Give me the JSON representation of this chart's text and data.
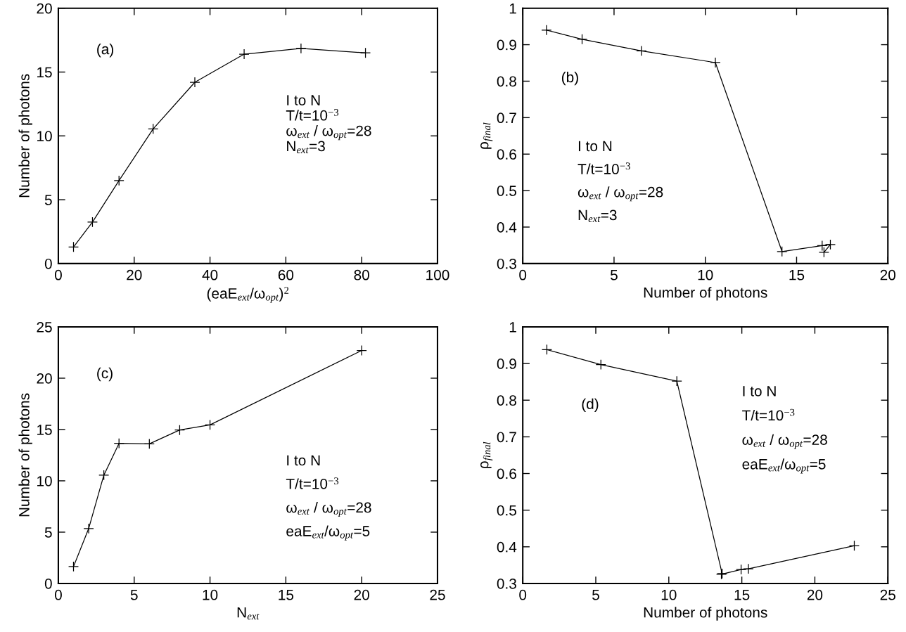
{
  "chart_data": [
    {
      "type": "line",
      "x": [
        4,
        9,
        16,
        25,
        36,
        49,
        64,
        81
      ],
      "values": [
        1.3,
        3.25,
        6.5,
        10.55,
        14.2,
        16.4,
        16.85,
        16.5
      ],
      "color": "#000000",
      "marker": "cross",
      "line_style": "solid",
      "xlim": [
        0,
        100
      ],
      "xticks": [
        0,
        20,
        40,
        60,
        80,
        100
      ],
      "ylim": [
        0,
        20
      ],
      "yticks": [
        0,
        5,
        10,
        15,
        20
      ],
      "xlabel": "(eaE$_{ext}$/ω$_{opt}$)$^{2}$",
      "ylabel": "Number of photons",
      "grid": false,
      "legend": false,
      "annotations": [
        "(a)",
        "I to N",
        "T/t=10$^{−3}$",
        "ω$_{ext}$ / ω$_{opt}$=28",
        "N$_{ext}$=3"
      ]
    },
    {
      "type": "line",
      "x": [
        1.3,
        3.25,
        6.5,
        10.55,
        14.2,
        16.4,
        16.85,
        16.5
      ],
      "values": [
        0.94,
        0.915,
        0.883,
        0.851,
        0.333,
        0.349,
        0.352,
        0.331
      ],
      "color": "#000000",
      "marker": "cross",
      "line_style": "solid",
      "xlim": [
        0,
        20
      ],
      "xticks": [
        0,
        5,
        10,
        15,
        20
      ],
      "ylim": [
        0.3,
        1
      ],
      "yticks": [
        0.3,
        0.4,
        0.5,
        0.6,
        0.7,
        0.8,
        0.9,
        1
      ],
      "xlabel": "Number of photons",
      "ylabel": "ρ$_{final}$",
      "grid": false,
      "legend": false,
      "annotations": [
        "(b)",
        "I to N",
        "T/t=10$^{−3}$",
        "ω$_{ext}$ / ω$_{opt}$=28",
        "N$_{ext}$=3"
      ]
    },
    {
      "type": "line",
      "x": [
        1,
        2,
        3,
        4,
        6,
        8,
        10,
        20
      ],
      "values": [
        1.65,
        5.35,
        10.55,
        13.65,
        13.6,
        14.95,
        15.45,
        22.7
      ],
      "color": "#000000",
      "marker": "cross",
      "line_style": "solid",
      "xlim": [
        0,
        25
      ],
      "xticks": [
        0,
        5,
        10,
        15,
        20,
        25
      ],
      "ylim": [
        0,
        25
      ],
      "yticks": [
        0,
        5,
        10,
        15,
        20,
        25
      ],
      "xlabel": "N$_{ext}$",
      "ylabel": "Number of photons",
      "grid": false,
      "legend": false,
      "annotations": [
        "(c)",
        "I to N",
        "T/t=10$^{−3}$",
        "ω$_{ext}$ / ω$_{opt}$=28",
        "eaE$_{ext}$/ω$_{opt}$=5"
      ]
    },
    {
      "type": "line",
      "x": [
        1.65,
        5.35,
        10.55,
        13.65,
        13.6,
        14.95,
        15.45,
        22.7
      ],
      "values": [
        0.938,
        0.897,
        0.852,
        0.327,
        0.325,
        0.338,
        0.34,
        0.403
      ],
      "color": "#000000",
      "marker": "cross",
      "line_style": "solid",
      "xlim": [
        0,
        25
      ],
      "xticks": [
        0,
        5,
        10,
        15,
        20,
        25
      ],
      "ylim": [
        0.3,
        1
      ],
      "yticks": [
        0.3,
        0.4,
        0.5,
        0.6,
        0.7,
        0.8,
        0.9,
        1
      ],
      "xlabel": "Number of photons",
      "ylabel": "ρ$_{final}$",
      "grid": false,
      "legend": false,
      "annotations": [
        "(d)",
        "I to N",
        "T/t=10$^{−3}$",
        "ω$_{ext}$ / ω$_{opt}$=28",
        "eaE$_{ext}$/ω$_{opt}$=5"
      ]
    }
  ]
}
